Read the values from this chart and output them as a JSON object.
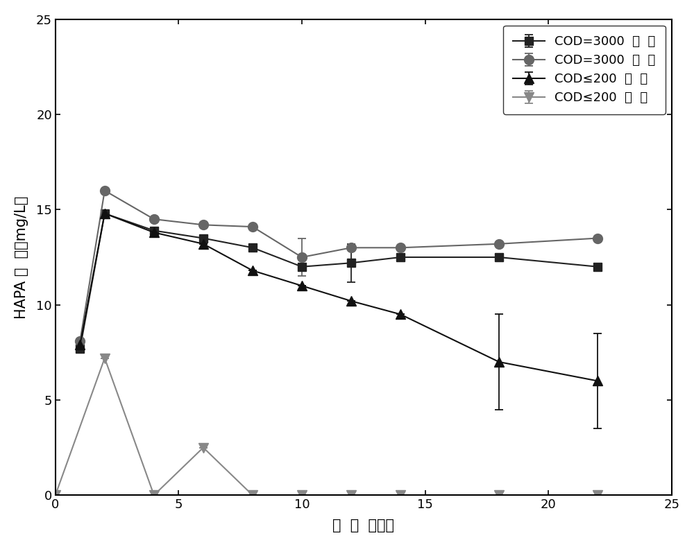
{
  "series": [
    {
      "label": "COD=3000  无  电",
      "color": "#222222",
      "marker": "s",
      "marker_size": 9,
      "x": [
        1,
        2,
        4,
        6,
        8,
        10,
        12,
        14,
        18,
        22
      ],
      "y": [
        7.7,
        14.8,
        13.9,
        13.5,
        13.0,
        12.0,
        12.2,
        12.5,
        12.5,
        12.0
      ],
      "yerr": [
        0,
        0,
        0,
        0,
        0,
        0,
        1.0,
        0,
        0,
        0
      ]
    },
    {
      "label": "COD=3000  通  电",
      "color": "#666666",
      "marker": "o",
      "marker_size": 10,
      "x": [
        1,
        2,
        4,
        6,
        8,
        10,
        12,
        14,
        18,
        22
      ],
      "y": [
        8.1,
        16.0,
        14.5,
        14.2,
        14.1,
        12.5,
        13.0,
        13.0,
        13.2,
        13.5
      ],
      "yerr": [
        0,
        0,
        0,
        0,
        0,
        1.0,
        0,
        0,
        0,
        0
      ]
    },
    {
      "label": "COD≤200  无  电",
      "color": "#111111",
      "marker": "^",
      "marker_size": 10,
      "x": [
        1,
        2,
        4,
        6,
        8,
        10,
        12,
        14,
        18,
        22
      ],
      "y": [
        7.9,
        14.8,
        13.8,
        13.2,
        11.8,
        11.0,
        10.2,
        9.5,
        7.0,
        6.0
      ],
      "yerr": [
        0,
        0,
        0,
        0,
        0,
        0,
        0,
        0,
        2.5,
        2.5
      ]
    },
    {
      "label": "COD≤200  通  电",
      "color": "#888888",
      "marker": "v",
      "marker_size": 10,
      "x": [
        0,
        2,
        4,
        6,
        8,
        10,
        12,
        14,
        18,
        22
      ],
      "y": [
        0.0,
        7.2,
        0.0,
        2.5,
        0.0,
        0.0,
        0.0,
        0.0,
        0.0,
        0.0
      ],
      "yerr": [
        0,
        0,
        0,
        0,
        0,
        0,
        0,
        0,
        0,
        0
      ]
    }
  ],
  "xlabel": "时  间  （天）",
  "ylabel": "HAPA 浓  度（mg/L）",
  "xlim": [
    0,
    25
  ],
  "ylim": [
    0,
    25
  ],
  "xticks": [
    0,
    5,
    10,
    15,
    20,
    25
  ],
  "yticks": [
    0,
    5,
    10,
    15,
    20,
    25
  ],
  "legend_loc": "upper right",
  "figure_bg": "#ffffff",
  "axes_bg": "#ffffff",
  "line_width": 1.5,
  "capsize": 4,
  "figsize": [
    10.0,
    7.89
  ],
  "dpi": 100
}
